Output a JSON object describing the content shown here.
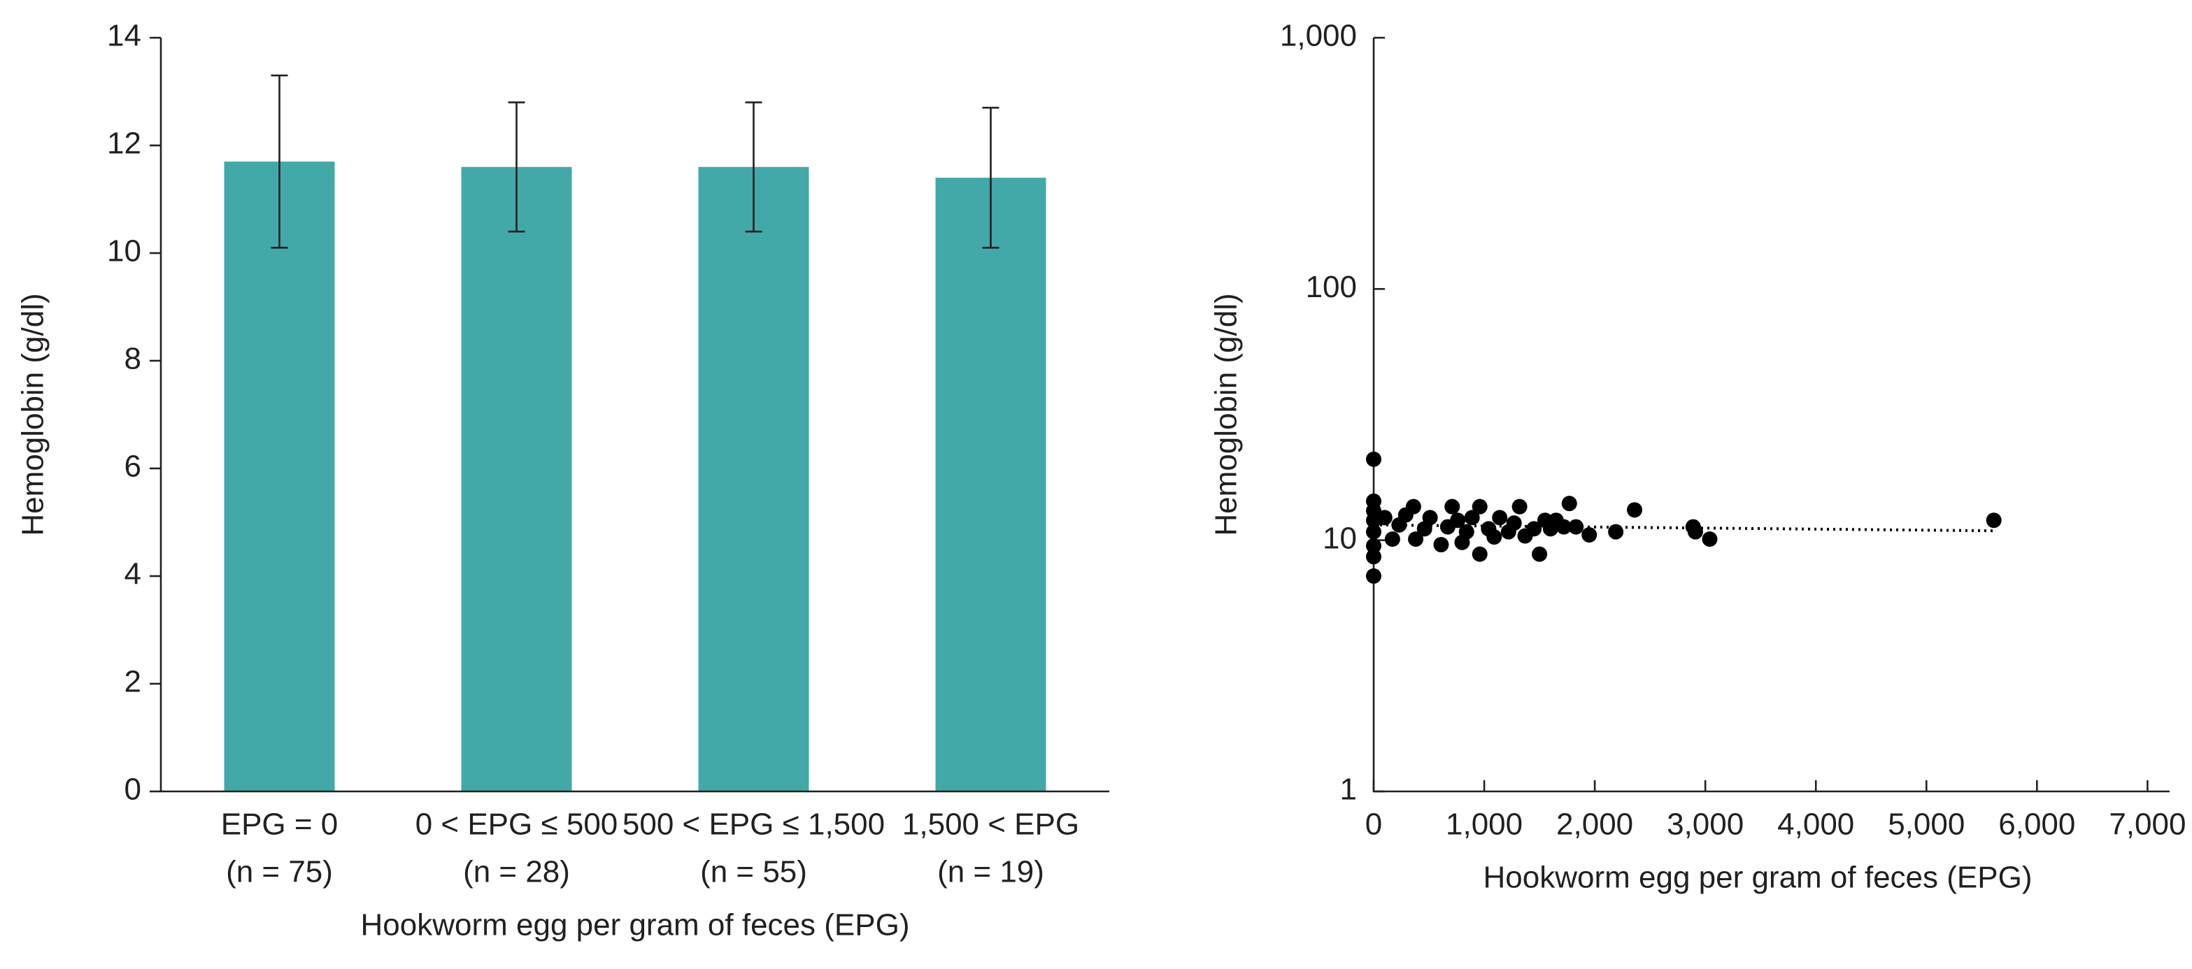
{
  "chart_data": [
    {
      "type": "bar",
      "y_label": "Hemoglobin (g/dl)",
      "x_label": "Hookworm egg per gram of feces (EPG)",
      "categories": [
        [
          "EPG = 0",
          "(n = 75)"
        ],
        [
          "0 < EPG ≤ 500",
          "(n = 28)"
        ],
        [
          "500 < EPG ≤ 1,500",
          "(n = 55)"
        ],
        [
          "1,500 < EPG",
          "(n = 19)"
        ]
      ],
      "values": [
        11.7,
        11.6,
        11.6,
        11.4
      ],
      "errors": [
        1.6,
        1.2,
        1.2,
        1.3
      ],
      "color": "#43a8a8",
      "ylim": [
        0,
        14
      ],
      "yticks": [
        0,
        2,
        4,
        6,
        8,
        10,
        12,
        14
      ]
    },
    {
      "type": "scatter",
      "y_label": "Hemoglobin (g/dl)",
      "x_label": "Hookworm egg per gram of feces (EPG)",
      "log_y": true,
      "color": "#000000",
      "x": [
        0,
        0,
        0,
        0,
        0,
        0,
        0,
        0,
        100,
        170,
        230,
        290,
        360,
        380,
        460,
        510,
        610,
        670,
        710,
        760,
        800,
        840,
        890,
        960,
        960,
        1040,
        1090,
        1140,
        1220,
        1270,
        1320,
        1370,
        1450,
        1500,
        1550,
        1600,
        1650,
        1720,
        1770,
        1830,
        1950,
        2190,
        2360,
        2890,
        2910,
        3040,
        5610
      ],
      "y": [
        21.0,
        14.3,
        13.1,
        12.0,
        10.8,
        9.5,
        8.6,
        7.2,
        12.3,
        10.1,
        11.5,
        12.6,
        13.6,
        10.1,
        11.1,
        12.3,
        9.6,
        11.3,
        13.6,
        12.0,
        9.8,
        10.8,
        12.3,
        8.8,
        13.6,
        11.1,
        10.3,
        12.3,
        10.8,
        11.7,
        13.6,
        10.4,
        11.1,
        8.8,
        12.0,
        11.1,
        12.0,
        11.3,
        14.0,
        11.3,
        10.5,
        10.8,
        13.2,
        11.3,
        10.8,
        10.1,
        12.0
      ],
      "trend": {
        "x": [
          0,
          5610
        ],
        "y": [
          11.5,
          10.9
        ]
      },
      "xlim": [
        0,
        7200
      ],
      "xticks": [
        0,
        {
          "value": 1000,
          "label": "1,000"
        },
        {
          "value": 2000,
          "label": "2,000"
        },
        {
          "value": 3000,
          "label": "3,000"
        },
        {
          "value": 4000,
          "label": "4,000"
        },
        {
          "value": 5000,
          "label": "5,000"
        },
        {
          "value": 6000,
          "label": "6,000"
        },
        {
          "value": 7000,
          "label": "7,000"
        }
      ],
      "ylim": [
        1,
        1000
      ],
      "yticks": [
        1,
        10,
        100,
        {
          "value": 1000,
          "label": "1,000"
        }
      ]
    }
  ]
}
